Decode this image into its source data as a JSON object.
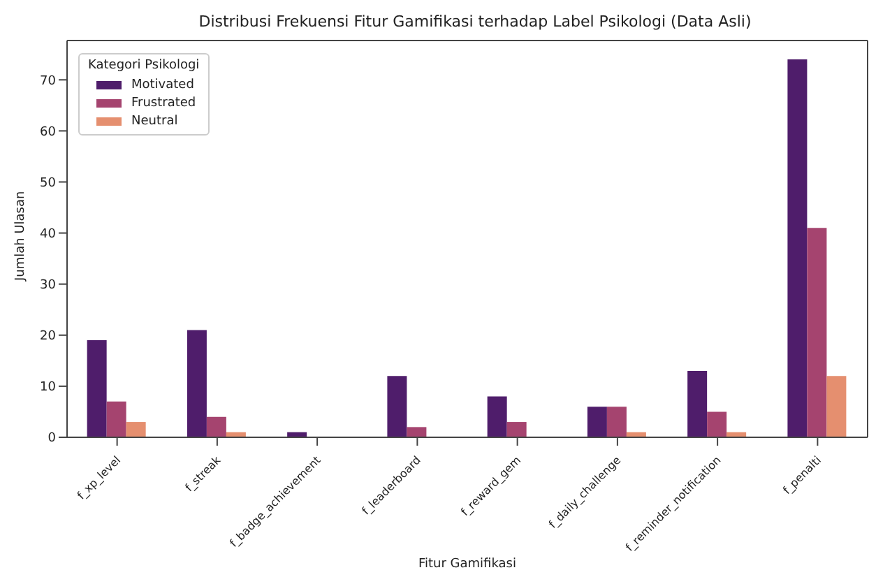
{
  "chart_data": {
    "type": "bar",
    "title": "Distribusi Frekuensi Fitur Gamifikasi terhadap Label Psikologi (Data Asli)",
    "xlabel": "Fitur Gamifikasi",
    "ylabel": "Jumlah Ulasan",
    "legend_title": "Kategori Psikologi",
    "categories": [
      "f_xp_level",
      "f_streak",
      "f_badge_achievement",
      "f_leaderboard",
      "f_reward_gem",
      "f_daily_challenge",
      "f_reminder_notification",
      "f_penalti"
    ],
    "series": [
      {
        "name": "Motivated",
        "color": "#4f1d6b",
        "values": [
          19,
          21,
          1,
          12,
          8,
          6,
          13,
          74
        ]
      },
      {
        "name": "Frustrated",
        "color": "#a5446f",
        "values": [
          7,
          4,
          0,
          2,
          3,
          6,
          5,
          41
        ]
      },
      {
        "name": "Neutral",
        "color": "#e58f6f",
        "values": [
          3,
          1,
          0,
          0,
          0,
          1,
          1,
          12
        ]
      }
    ],
    "ylim": [
      0,
      77.7
    ],
    "yticks": [
      0,
      10,
      20,
      30,
      40,
      50,
      60,
      70
    ],
    "grid": false,
    "legend": "top left"
  }
}
